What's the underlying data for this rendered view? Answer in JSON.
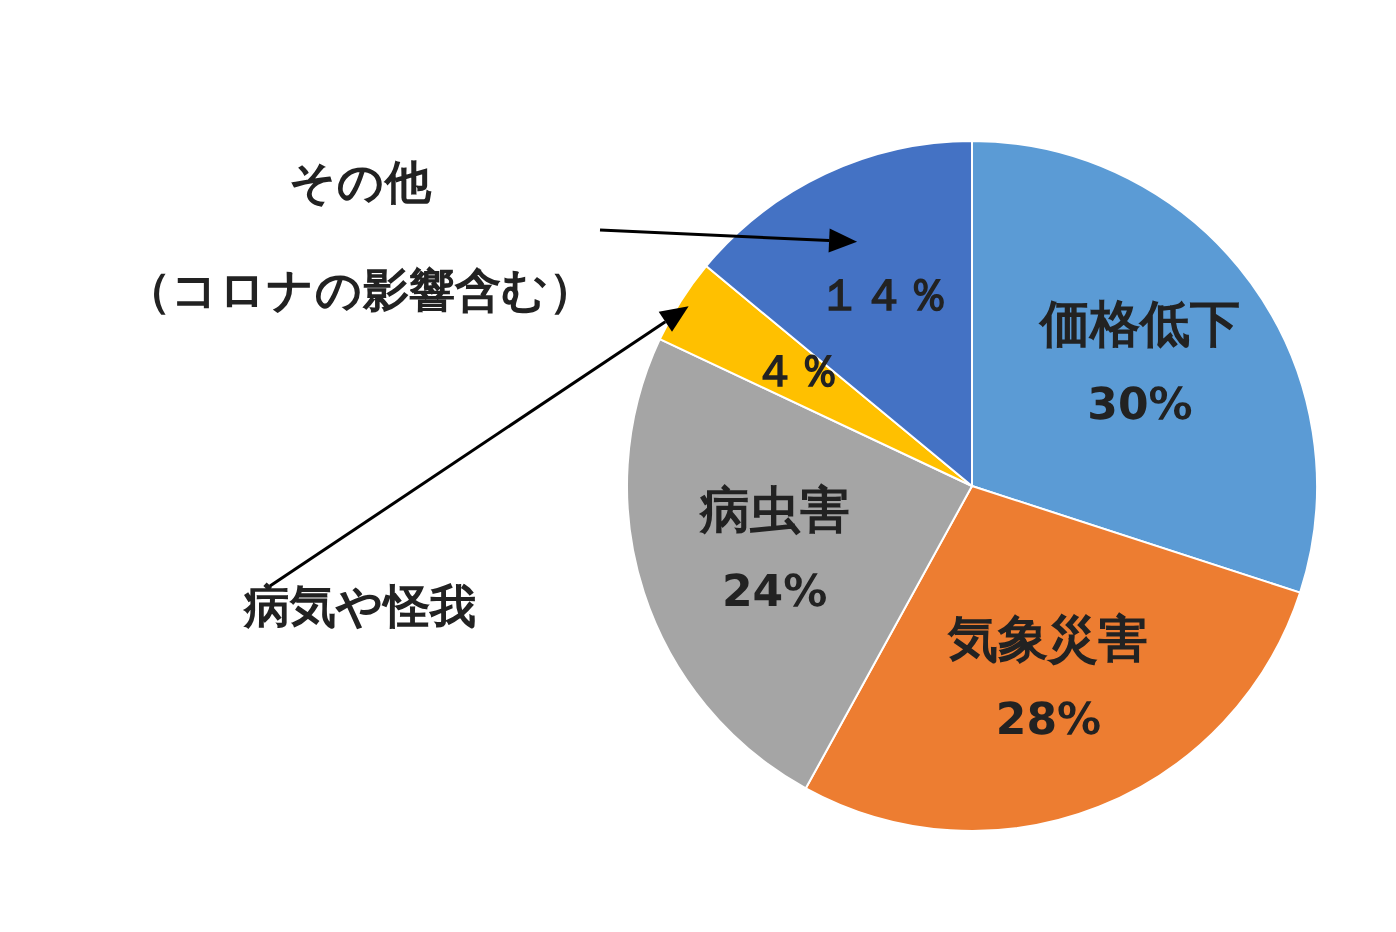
{
  "chart_data": {
    "type": "pie",
    "categories": [
      "価格低下",
      "気象災害",
      "病虫害",
      "病気や怪我",
      "その他（コロナの影響含む）"
    ],
    "values": [
      30,
      28,
      24,
      4,
      14
    ],
    "colors": [
      "#5b9bd5",
      "#ed7d31",
      "#a5a5a5",
      "#ffc000",
      "#4472c4"
    ],
    "value_labels": [
      "30%",
      "28%",
      "24%",
      "４％",
      "１４％"
    ],
    "legend": false
  }
}
